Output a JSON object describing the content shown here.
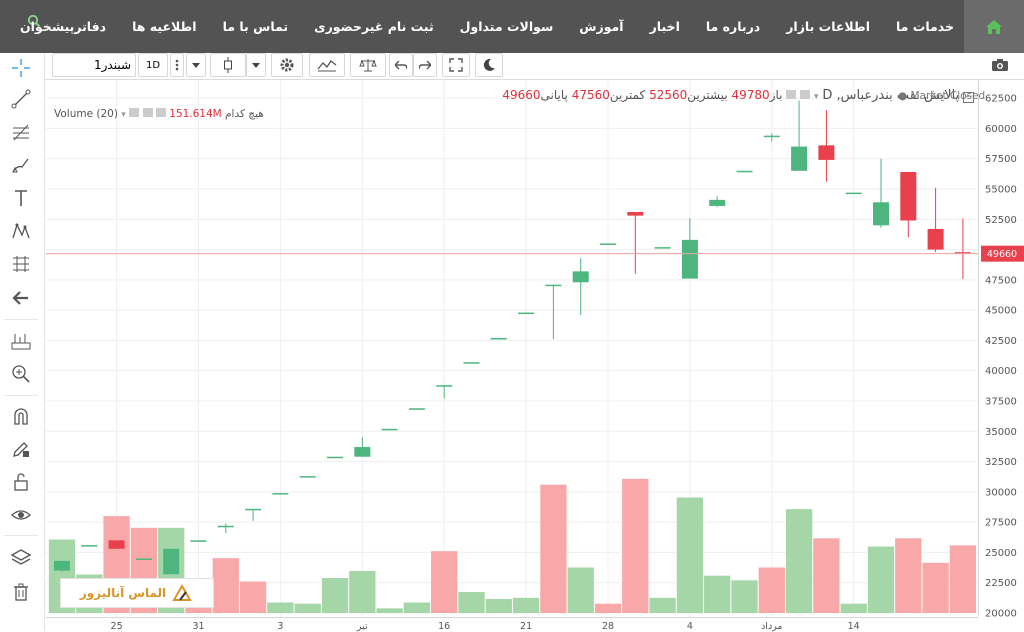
{
  "nav": {
    "items": [
      "خدمات ما",
      "اطلاعات بازار",
      "درباره ما",
      "اخبار",
      "آموزش",
      "سوالات متداول",
      "ثبت نام غیرحضوری",
      "تماس با ما",
      "اطلاعیه ها",
      "دفاترپیشخوان"
    ]
  },
  "toolbar": {
    "symbol_value": "شبندر1",
    "timeframe": "1D"
  },
  "legend": {
    "symbol_title": "پالایش نفت بندرعباس, D",
    "open_label": "باز",
    "open_value": "49780",
    "high_label": "بیشترین",
    "high_value": "52560",
    "low_label": "کمترین",
    "low_value": "47560",
    "close_label": "پایانی",
    "close_value": "49660",
    "volume_label": "Volume (20)",
    "volume_value": "151.614M",
    "none_label": "هیچ کدام",
    "market_status": "Market Closed"
  },
  "logo_text": "الماس آنالیزور",
  "colors": {
    "up": "#4db67e",
    "down": "#e8404d",
    "vol_up": "#a5d6a7",
    "vol_down": "#f8a8a8",
    "nav_bg": "#535353"
  },
  "chart_data": {
    "type": "candlestick",
    "ylim": [
      20000,
      63500
    ],
    "last_price": 49660,
    "price_ticks": [
      20000,
      22500,
      25000,
      27500,
      30000,
      32500,
      35000,
      37500,
      40000,
      42500,
      45000,
      47500,
      50000,
      52500,
      55000,
      57500,
      60000,
      62500
    ],
    "time_ticks": [
      {
        "label": "25",
        "i": 2
      },
      {
        "label": "31",
        "i": 5
      },
      {
        "label": "3",
        "i": 8
      },
      {
        "label": "تیر",
        "i": 11
      },
      {
        "label": "16",
        "i": 14
      },
      {
        "label": "21",
        "i": 17
      },
      {
        "label": "28",
        "i": 20
      },
      {
        "label": "4",
        "i": 23
      },
      {
        "label": "مرداد",
        "i": 26
      },
      {
        "label": "14",
        "i": 29
      }
    ],
    "candles": [
      {
        "o": 23500,
        "h": 24300,
        "l": 23400,
        "c": 24300
      },
      {
        "o": 25600,
        "h": 25600,
        "l": 25600,
        "c": 25600
      },
      {
        "o": 26000,
        "h": 26000,
        "l": 25300,
        "c": 25300
      },
      {
        "o": 24500,
        "h": 24500,
        "l": 24500,
        "c": 24500
      },
      {
        "o": 23200,
        "h": 25300,
        "l": 23200,
        "c": 25300
      },
      {
        "o": 26000,
        "h": 26000,
        "l": 26000,
        "c": 26000
      },
      {
        "o": 27200,
        "h": 27400,
        "l": 26600,
        "c": 27200
      },
      {
        "o": 28600,
        "h": 28600,
        "l": 27600,
        "c": 28600
      },
      {
        "o": 29900,
        "h": 29900,
        "l": 29900,
        "c": 29900
      },
      {
        "o": 31300,
        "h": 31300,
        "l": 31300,
        "c": 31300
      },
      {
        "o": 32900,
        "h": 32900,
        "l": 32900,
        "c": 32900
      },
      {
        "o": 32900,
        "h": 34500,
        "l": 32900,
        "c": 33700
      },
      {
        "o": 35200,
        "h": 35200,
        "l": 35200,
        "c": 35200
      },
      {
        "o": 36900,
        "h": 36900,
        "l": 36900,
        "c": 36900
      },
      {
        "o": 38800,
        "h": 38800,
        "l": 37700,
        "c": 38800
      },
      {
        "o": 40700,
        "h": 40700,
        "l": 40700,
        "c": 40700
      },
      {
        "o": 42700,
        "h": 42700,
        "l": 42700,
        "c": 42700
      },
      {
        "o": 44800,
        "h": 44800,
        "l": 44800,
        "c": 44800
      },
      {
        "o": 47100,
        "h": 47100,
        "l": 42600,
        "c": 47100
      },
      {
        "o": 47300,
        "h": 49300,
        "l": 44600,
        "c": 48200
      },
      {
        "o": 50500,
        "h": 50500,
        "l": 50500,
        "c": 50500
      },
      {
        "o": 53100,
        "h": 53100,
        "l": 48000,
        "c": 52800
      },
      {
        "o": 50200,
        "h": 50200,
        "l": 50200,
        "c": 50200
      },
      {
        "o": 47600,
        "h": 52600,
        "l": 47600,
        "c": 50800
      },
      {
        "o": 53600,
        "h": 54400,
        "l": 53500,
        "c": 54100
      },
      {
        "o": 56500,
        "h": 56500,
        "l": 56500,
        "c": 56500
      },
      {
        "o": 59400,
        "h": 59600,
        "l": 58900,
        "c": 59400
      },
      {
        "o": 56500,
        "h": 62300,
        "l": 56500,
        "c": 58500
      },
      {
        "o": 58600,
        "h": 61500,
        "l": 55600,
        "c": 57400
      },
      {
        "o": 54700,
        "h": 54700,
        "l": 54700,
        "c": 54700
      },
      {
        "o": 52000,
        "h": 57500,
        "l": 51800,
        "c": 53900
      },
      {
        "o": 56400,
        "h": 56400,
        "l": 51000,
        "c": 52400
      },
      {
        "o": 51700,
        "h": 55100,
        "l": 49800,
        "c": 50000
      },
      {
        "o": 49780,
        "h": 52560,
        "l": 47560,
        "c": 49660
      }
    ],
    "volume_max": 31500,
    "volume": [
      {
        "v": 25800,
        "up": true
      },
      {
        "v": 22800,
        "up": true
      },
      {
        "v": 27800,
        "up": false
      },
      {
        "v": 26800,
        "up": false
      },
      {
        "v": 26800,
        "up": true
      },
      {
        "v": 20500,
        "up": false
      },
      {
        "v": 24200,
        "up": false
      },
      {
        "v": 22200,
        "up": false
      },
      {
        "v": 20400,
        "up": true
      },
      {
        "v": 20300,
        "up": true
      },
      {
        "v": 22500,
        "up": true
      },
      {
        "v": 23100,
        "up": true
      },
      {
        "v": 19900,
        "up": true
      },
      {
        "v": 20400,
        "up": true
      },
      {
        "v": 24800,
        "up": false
      },
      {
        "v": 21300,
        "up": true
      },
      {
        "v": 20700,
        "up": true
      },
      {
        "v": 20800,
        "up": true
      },
      {
        "v": 30500,
        "up": false
      },
      {
        "v": 23400,
        "up": true
      },
      {
        "v": 20300,
        "up": false
      },
      {
        "v": 31000,
        "up": false
      },
      {
        "v": 20800,
        "up": true
      },
      {
        "v": 29400,
        "up": true
      },
      {
        "v": 22700,
        "up": true
      },
      {
        "v": 22300,
        "up": true
      },
      {
        "v": 23400,
        "up": false
      },
      {
        "v": 28400,
        "up": true
      },
      {
        "v": 25900,
        "up": false
      },
      {
        "v": 20300,
        "up": true
      },
      {
        "v": 25200,
        "up": true
      },
      {
        "v": 25900,
        "up": false
      },
      {
        "v": 23800,
        "up": false
      },
      {
        "v": 25300,
        "up": false
      }
    ]
  }
}
